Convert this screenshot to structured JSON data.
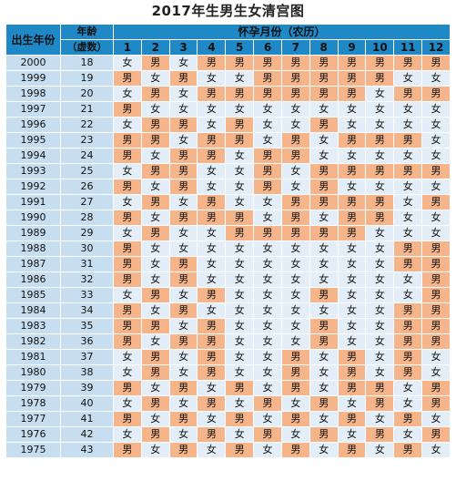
{
  "title": "2017年生男生女清宫图",
  "headers": {
    "year": "出生年份",
    "age_line1": "年龄",
    "age_line2": "（虚数）",
    "month_group": "怀孕月份（农历）",
    "months": [
      "1",
      "2",
      "3",
      "4",
      "5",
      "6",
      "7",
      "8",
      "9",
      "10",
      "11",
      "12"
    ]
  },
  "colors": {
    "header": "#1f89c8",
    "boy": "#f6b48a",
    "girl": "#e3eef8",
    "year_cell": "#c7def0"
  },
  "rows": [
    {
      "year": "2000",
      "age": "18",
      "c": [
        "女",
        "男",
        "女",
        "男",
        "男",
        "男",
        "男",
        "男",
        "男",
        "男",
        "男",
        "男"
      ]
    },
    {
      "year": "1999",
      "age": "19",
      "c": [
        "男",
        "女",
        "男",
        "女",
        "女",
        "男",
        "男",
        "男",
        "男",
        "男",
        "女",
        "女"
      ]
    },
    {
      "year": "1998",
      "age": "20",
      "c": [
        "女",
        "男",
        "女",
        "男",
        "男",
        "男",
        "男",
        "男",
        "男",
        "女",
        "男",
        "男"
      ]
    },
    {
      "year": "1997",
      "age": "21",
      "c": [
        "男",
        "女",
        "女",
        "女",
        "女",
        "女",
        "女",
        "女",
        "女",
        "女",
        "女",
        "女"
      ]
    },
    {
      "year": "1996",
      "age": "22",
      "c": [
        "女",
        "男",
        "男",
        "女",
        "男",
        "女",
        "女",
        "男",
        "女",
        "女",
        "女",
        "女"
      ]
    },
    {
      "year": "1995",
      "age": "23",
      "c": [
        "男",
        "男",
        "女",
        "男",
        "男",
        "女",
        "男",
        "女",
        "男",
        "男",
        "男",
        "女"
      ]
    },
    {
      "year": "1994",
      "age": "24",
      "c": [
        "男",
        "女",
        "男",
        "男",
        "女",
        "男",
        "男",
        "女",
        "女",
        "女",
        "女",
        "女"
      ]
    },
    {
      "year": "1993",
      "age": "25",
      "c": [
        "女",
        "男",
        "男",
        "女",
        "女",
        "男",
        "女",
        "男",
        "男",
        "男",
        "男",
        "男"
      ]
    },
    {
      "year": "1992",
      "age": "26",
      "c": [
        "男",
        "女",
        "男",
        "女",
        "女",
        "男",
        "女",
        "男",
        "女",
        "女",
        "女",
        "女"
      ]
    },
    {
      "year": "1991",
      "age": "27",
      "c": [
        "女",
        "男",
        "女",
        "男",
        "女",
        "女",
        "男",
        "男",
        "男",
        "男",
        "女",
        "男"
      ]
    },
    {
      "year": "1990",
      "age": "28",
      "c": [
        "男",
        "女",
        "男",
        "男",
        "男",
        "女",
        "男",
        "女",
        "男",
        "男",
        "女",
        "女"
      ]
    },
    {
      "year": "1989",
      "age": "29",
      "c": [
        "女",
        "男",
        "女",
        "女",
        "男",
        "男",
        "男",
        "男",
        "男",
        "女",
        "女",
        "女"
      ]
    },
    {
      "year": "1988",
      "age": "30",
      "c": [
        "男",
        "女",
        "女",
        "女",
        "女",
        "女",
        "女",
        "女",
        "女",
        "女",
        "男",
        "男"
      ]
    },
    {
      "year": "1987",
      "age": "31",
      "c": [
        "男",
        "女",
        "男",
        "女",
        "女",
        "女",
        "女",
        "女",
        "女",
        "女",
        "男",
        "男"
      ]
    },
    {
      "year": "1986",
      "age": "32",
      "c": [
        "男",
        "女",
        "男",
        "女",
        "女",
        "女",
        "女",
        "女",
        "女",
        "女",
        "女",
        "男"
      ]
    },
    {
      "year": "1985",
      "age": "33",
      "c": [
        "女",
        "男",
        "女",
        "男",
        "女",
        "女",
        "女",
        "男",
        "女",
        "女",
        "女",
        "男"
      ]
    },
    {
      "year": "1984",
      "age": "34",
      "c": [
        "男",
        "女",
        "男",
        "女",
        "女",
        "女",
        "女",
        "女",
        "女",
        "女",
        "男",
        "男"
      ]
    },
    {
      "year": "1983",
      "age": "35",
      "c": [
        "男",
        "男",
        "女",
        "男",
        "女",
        "女",
        "女",
        "男",
        "女",
        "女",
        "男",
        "男"
      ]
    },
    {
      "year": "1982",
      "age": "36",
      "c": [
        "男",
        "女",
        "男",
        "男",
        "女",
        "女",
        "女",
        "男",
        "女",
        "女",
        "男",
        "男"
      ]
    },
    {
      "year": "1981",
      "age": "37",
      "c": [
        "女",
        "男",
        "女",
        "男",
        "女",
        "女",
        "男",
        "女",
        "男",
        "女",
        "男",
        "女"
      ]
    },
    {
      "year": "1980",
      "age": "38",
      "c": [
        "女",
        "男",
        "女",
        "男",
        "女",
        "女",
        "男",
        "女",
        "男",
        "女",
        "男",
        "女"
      ]
    },
    {
      "year": "1979",
      "age": "39",
      "c": [
        "男",
        "女",
        "男",
        "女",
        "男",
        "女",
        "男",
        "女",
        "男",
        "男",
        "女",
        "男"
      ]
    },
    {
      "year": "1978",
      "age": "40",
      "c": [
        "女",
        "男",
        "女",
        "男",
        "女",
        "男",
        "女",
        "男",
        "女",
        "男",
        "女",
        "男"
      ]
    },
    {
      "year": "1977",
      "age": "41",
      "c": [
        "男",
        "女",
        "男",
        "女",
        "男",
        "女",
        "男",
        "女",
        "男",
        "女",
        "男",
        "女"
      ]
    },
    {
      "year": "1976",
      "age": "42",
      "c": [
        "女",
        "男",
        "女",
        "男",
        "女",
        "男",
        "女",
        "男",
        "女",
        "男",
        "女",
        "男"
      ]
    },
    {
      "year": "1975",
      "age": "43",
      "c": [
        "男",
        "女",
        "男",
        "女",
        "男",
        "女",
        "男",
        "女",
        "男",
        "女",
        "男",
        "女"
      ]
    }
  ]
}
